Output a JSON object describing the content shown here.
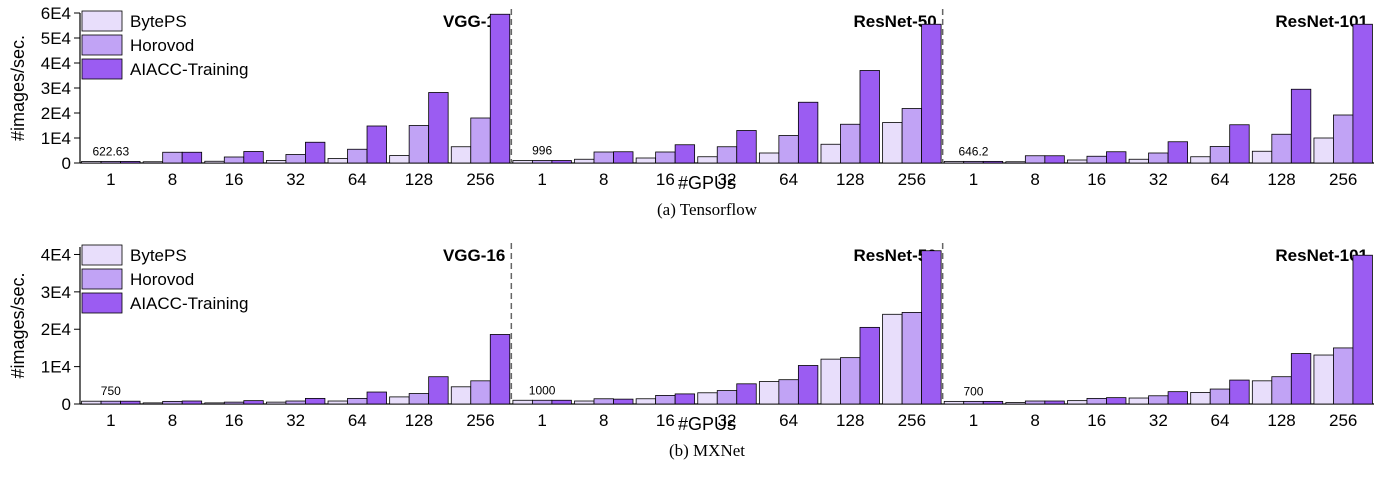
{
  "colors": {
    "BytePS": "#e8defb",
    "Horovod": "#c1a3f5",
    "AIACC-Training": "#9b5cf2"
  },
  "chart_data": [
    {
      "type": "bar",
      "caption": "(a) Tensorflow",
      "xlabel": "#GPUs",
      "ylabel": "#images/sec.",
      "ylim": [
        0,
        60000
      ],
      "yticks": [
        0,
        10000,
        20000,
        30000,
        40000,
        50000,
        60000
      ],
      "ytick_labels": [
        "0",
        "1E4",
        "2E4",
        "3E4",
        "4E4",
        "5E4",
        "6E4"
      ],
      "legend": [
        "BytePS",
        "Horovod",
        "AIACC-Training"
      ],
      "legend_position": "top-left",
      "groups": [
        {
          "name": "VGG-16",
          "categories": [
            "1",
            "8",
            "16",
            "32",
            "64",
            "128",
            "256"
          ],
          "annotation": "622.63",
          "series": [
            {
              "name": "BytePS",
              "values": [
                622.63,
                500,
                700,
                1000,
                1800,
                3000,
                6500
              ]
            },
            {
              "name": "Horovod",
              "values": [
                622.63,
                4300,
                2400,
                3400,
                5500,
                15000,
                18000
              ]
            },
            {
              "name": "AIACC-Training",
              "values": [
                622.63,
                4300,
                4600,
                8300,
                14800,
                28200,
                59500
              ]
            }
          ]
        },
        {
          "name": "ResNet-50",
          "categories": [
            "1",
            "8",
            "16",
            "32",
            "64",
            "128",
            "256"
          ],
          "annotation": "996",
          "series": [
            {
              "name": "BytePS",
              "values": [
                996,
                1500,
                2000,
                2500,
                4000,
                7500,
                16200
              ]
            },
            {
              "name": "Horovod",
              "values": [
                996,
                4400,
                4400,
                6500,
                11000,
                15500,
                21800
              ]
            },
            {
              "name": "AIACC-Training",
              "values": [
                996,
                4500,
                7300,
                13000,
                24300,
                37000,
                55500
              ]
            }
          ]
        },
        {
          "name": "ResNet-101",
          "categories": [
            "1",
            "8",
            "16",
            "32",
            "64",
            "128",
            "256"
          ],
          "annotation": "646.2",
          "series": [
            {
              "name": "BytePS",
              "values": [
                646.2,
                500,
                1200,
                1500,
                2500,
                4700,
                10000
              ]
            },
            {
              "name": "Horovod",
              "values": [
                646.2,
                2900,
                2700,
                4000,
                6600,
                11500,
                19200
              ]
            },
            {
              "name": "AIACC-Training",
              "values": [
                646.2,
                2900,
                4500,
                8500,
                15300,
                29500,
                55500
              ]
            }
          ]
        }
      ]
    },
    {
      "type": "bar",
      "caption": "(b) MXNet",
      "xlabel": "#GPUs",
      "ylabel": "#images/sec.",
      "ylim": [
        0,
        42000
      ],
      "yticks": [
        0,
        10000,
        20000,
        30000,
        40000
      ],
      "ytick_labels": [
        "0",
        "1E4",
        "2E4",
        "3E4",
        "4E4"
      ],
      "legend": [
        "BytePS",
        "Horovod",
        "AIACC-Training"
      ],
      "legend_position": "top-left",
      "groups": [
        {
          "name": "VGG-16",
          "categories": [
            "1",
            "8",
            "16",
            "32",
            "64",
            "128",
            "256"
          ],
          "annotation": "750",
          "series": [
            {
              "name": "BytePS",
              "values": [
                750,
                300,
                300,
                500,
                800,
                1900,
                4600
              ]
            },
            {
              "name": "Horovod",
              "values": [
                750,
                700,
                500,
                800,
                1500,
                2800,
                6200
              ]
            },
            {
              "name": "AIACC-Training",
              "values": [
                750,
                800,
                900,
                1500,
                3200,
                7300,
                18600
              ]
            }
          ]
        },
        {
          "name": "ResNet-50",
          "categories": [
            "1",
            "8",
            "16",
            "32",
            "64",
            "128",
            "256"
          ],
          "annotation": "1000",
          "series": [
            {
              "name": "BytePS",
              "values": [
                1000,
                800,
                1400,
                3000,
                6000,
                12000,
                24000
              ]
            },
            {
              "name": "Horovod",
              "values": [
                1000,
                1400,
                2300,
                3600,
                6500,
                12400,
                24500
              ]
            },
            {
              "name": "AIACC-Training",
              "values": [
                1000,
                1300,
                2700,
                5400,
                10300,
                20500,
                41000
              ]
            }
          ]
        },
        {
          "name": "ResNet-101",
          "categories": [
            "1",
            "8",
            "16",
            "32",
            "64",
            "128",
            "256"
          ],
          "annotation": "700",
          "series": [
            {
              "name": "BytePS",
              "values": [
                700,
                400,
                900,
                1600,
                3100,
                6200,
                13100
              ]
            },
            {
              "name": "Horovod",
              "values": [
                700,
                800,
                1500,
                2200,
                4000,
                7300,
                15000
              ]
            },
            {
              "name": "AIACC-Training",
              "values": [
                700,
                800,
                1700,
                3300,
                6400,
                13500,
                39800
              ]
            }
          ]
        }
      ]
    }
  ]
}
